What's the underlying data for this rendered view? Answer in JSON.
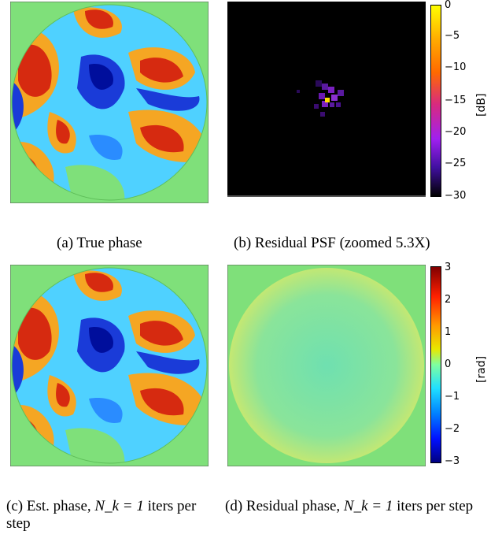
{
  "panels": {
    "a": {
      "caption": "(a) True phase"
    },
    "b": {
      "caption": "(b) Residual PSF (zoomed 5.3X)",
      "colorbar": {
        "label": "[dB]",
        "ticks": [
          "0",
          "−5",
          "−10",
          "−15",
          "−20",
          "−25",
          "−30"
        ]
      }
    },
    "c": {
      "caption_prefix": "(c) Est. phase,",
      "caption_math": "N_k = 1",
      "caption_suffix": "iters per step"
    },
    "d": {
      "caption_prefix": "(d) Residual phase,",
      "caption_math": "N_k = 1",
      "caption_suffix": "iters per step",
      "colorbar": {
        "label": "[rad]",
        "ticks": [
          "3",
          "2",
          "1",
          "0",
          "−1",
          "−2",
          "−3"
        ]
      }
    }
  },
  "colors": {
    "background_green": "#7fe07a",
    "psf_black": "#000000"
  }
}
